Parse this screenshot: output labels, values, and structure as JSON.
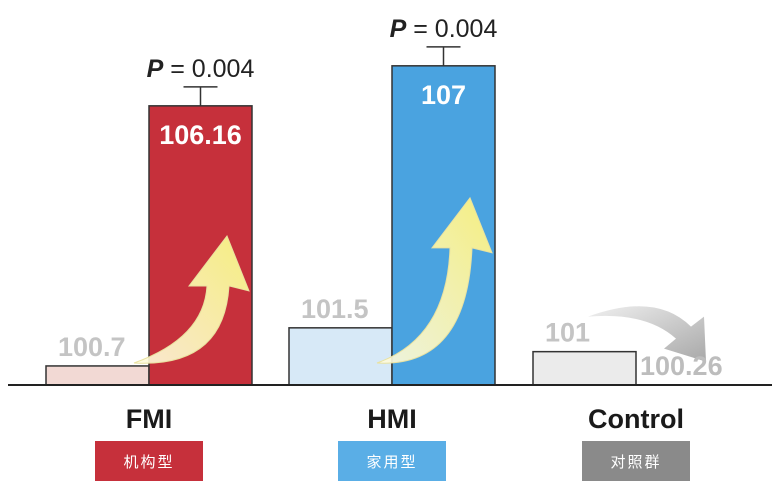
{
  "chart_data": {
    "type": "bar",
    "categories": [
      "FMI",
      "HMI",
      "Control"
    ],
    "series": [
      {
        "values": [
          100.7,
          101.5,
          101
        ]
      },
      {
        "values": [
          106.16,
          107,
          100.26
        ]
      }
    ],
    "value_labels": [
      [
        "100.7",
        "106.16"
      ],
      [
        "101.5",
        "107"
      ],
      [
        "101",
        "100.26"
      ]
    ],
    "p_values": [
      "P = 0.004",
      "P = 0.004",
      ""
    ],
    "category_subtitles": [
      "机构型",
      "家用型",
      "对照群"
    ],
    "ylim": [
      100.3,
      107.5
    ],
    "colors": {
      "before": [
        "#f2d9d4",
        "#d7e9f7",
        "#ebebeb"
      ],
      "after": [
        "#c6303b",
        "#4aa3e0",
        "#6a6a6a"
      ],
      "badge": [
        "#c6303b",
        "#5aaee6",
        "#8a8a8a"
      ],
      "arrow": "#f6f19a",
      "gray_arrow": "#bdbdbd"
    },
    "grid": false
  }
}
